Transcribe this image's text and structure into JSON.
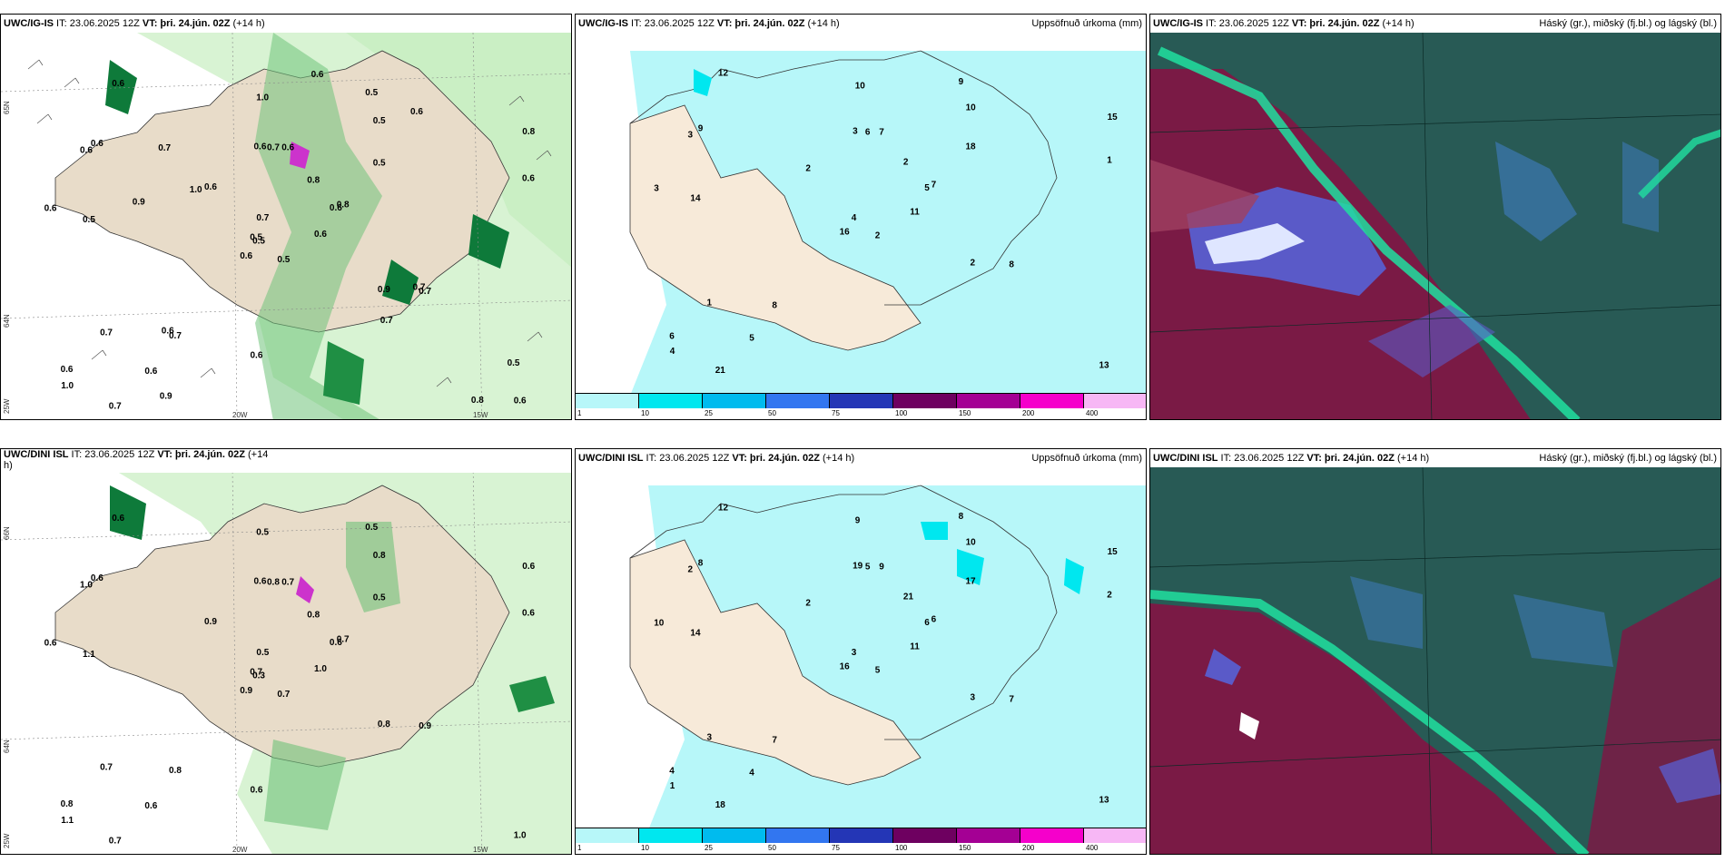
{
  "panels": [
    {
      "id": "p1",
      "title_model": "UWC/IG-IS",
      "title_it": " IT: 23.06.2025 12Z ",
      "title_vt": "VT: þri. 24.jún. 02Z",
      "title_lead": " (+14 h)",
      "title_right": "",
      "axis": {
        "lat_top": "65N",
        "lat_bottom": "64N",
        "lon_a": "25W",
        "lon_b": "20W",
        "lon_c": "15W"
      },
      "value_labels": [
        "0.5",
        "0.6",
        "0.5",
        "0.6",
        "0.6",
        "0.7",
        "0.5",
        "0.6",
        "0.5",
        "0.6",
        "0.6",
        "0.6",
        "0.5",
        "0.8",
        "0.6",
        "0.5",
        "0.7",
        "0.6",
        "0.8",
        "0.7",
        "0.6",
        "1.0",
        "0.6",
        "0.7",
        "0.8",
        "0.7",
        "0.6",
        "1.0",
        "0.6",
        "0.9",
        "0.6",
        "0.5",
        "0.6",
        "0.7",
        "0.7",
        "0.6",
        "0.6",
        "0.8",
        "0.5",
        "0.7",
        "0.6",
        "1.0",
        "0.9",
        "0.7",
        "0.9"
      ]
    },
    {
      "id": "p2",
      "title_model": "UWC/IG-IS",
      "title_it": " IT: 23.06.2025 12Z ",
      "title_vt": "VT: þri. 24.jún. 02Z",
      "title_lead": " (+14 h)",
      "title_right": "Uppsöfnuð úrkoma (mm)",
      "colorbar": [
        {
          "label": "1",
          "color": "#b7f7f9"
        },
        {
          "label": "10",
          "color": "#00e7ef"
        },
        {
          "label": "25",
          "color": "#00bbee"
        },
        {
          "label": "50",
          "color": "#3276f0"
        },
        {
          "label": "75",
          "color": "#2436b6"
        },
        {
          "label": "100",
          "color": "#6e0060"
        },
        {
          "label": "150",
          "color": "#a40094"
        },
        {
          "label": "200",
          "color": "#f500cb"
        },
        {
          "label": "400",
          "color": "#f7b7f5"
        }
      ],
      "value_labels": [
        "2",
        "3",
        "4",
        "6",
        "5",
        "8",
        "9",
        "7",
        "10",
        "11",
        "12",
        "13",
        "14",
        "15",
        "16",
        "18",
        "21",
        "3",
        "2",
        "1",
        "2",
        "4",
        "5",
        "6",
        "7",
        "8",
        "9",
        "10",
        "3",
        "2",
        "1"
      ]
    },
    {
      "id": "p3",
      "title_model": "UWC/IG-IS",
      "title_it": " IT: 23.06.2025 12Z ",
      "title_vt": "VT: þri. 24.jún. 02Z",
      "title_lead": " (+14 h)",
      "title_right": "Háský (gr.), miðský (fj.bl.) og lágský (bl.)"
    },
    {
      "id": "p4",
      "title_model": "UWC/DINI ISL",
      "title_it": " IT: 23.06.2025 12Z ",
      "title_vt": "VT: þri. 24.jún. 02Z",
      "title_lead": " (+14",
      "title_wrap": "h)",
      "title_right": "",
      "axis": {
        "lat_top": "66N",
        "lat_bottom": "64N",
        "lon_a": "25W",
        "lon_b": "20W",
        "lon_c": "15W"
      },
      "value_labels": [
        "0.7",
        "1.0",
        "0.3",
        "0.8",
        "0.6",
        "0.8",
        "0.5",
        "0.7",
        "0.8",
        "1.0",
        "0.6",
        "1.0",
        "1.1",
        "0.6",
        "0.9",
        "0.5",
        "0.7",
        "0.6",
        "0.8",
        "0.7",
        "0.9",
        "1.1",
        "0.6",
        "0.8",
        "0.7",
        "0.9",
        "0.6",
        "0.5",
        "0.6",
        "0.8",
        "0.6",
        "0.7",
        "0.6",
        "0.5"
      ]
    },
    {
      "id": "p5",
      "title_model": "UWC/DINI ISL",
      "title_it": " IT: 23.06.2025 12Z ",
      "title_vt": "VT: þri. 24.jún. 02Z",
      "title_lead": " (+14 h)",
      "title_right": "Uppsöfnuð úrkoma (mm)",
      "colorbar": [
        {
          "label": "1",
          "color": "#b7f7f9"
        },
        {
          "label": "10",
          "color": "#00e7ef"
        },
        {
          "label": "25",
          "color": "#00bbee"
        },
        {
          "label": "50",
          "color": "#3276f0"
        },
        {
          "label": "75",
          "color": "#2436b6"
        },
        {
          "label": "100",
          "color": "#6e0060"
        },
        {
          "label": "150",
          "color": "#a40094"
        },
        {
          "label": "200",
          "color": "#f500cb"
        },
        {
          "label": "400",
          "color": "#f7b7f5"
        }
      ],
      "value_labels": [
        "5",
        "2",
        "3",
        "4",
        "6",
        "7",
        "8",
        "9",
        "10",
        "11",
        "12",
        "13",
        "14",
        "15",
        "16",
        "17",
        "18",
        "19",
        "21",
        "3",
        "2",
        "1",
        "4",
        "5",
        "6",
        "7",
        "8",
        "9",
        "10",
        "3",
        "2"
      ]
    },
    {
      "id": "p6",
      "title_model": "UWC/DINI ISL",
      "title_it": " IT: 23.06.2025 12Z ",
      "title_vt": "VT: þri. 24.jún. 02Z",
      "title_lead": " (+14 h)",
      "title_right": "Háský (gr.), miðský (fj.bl.) og lágský (bl.)"
    }
  ]
}
